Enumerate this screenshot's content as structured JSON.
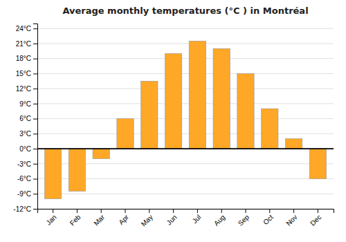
{
  "chart_data": {
    "type": "bar",
    "title": "Average monthly temperatures (°C ) in Montréal",
    "categories": [
      "Jan",
      "Feb",
      "Mar",
      "Apr",
      "May",
      "Jun",
      "Jul",
      "Aug",
      "Sep",
      "Oct",
      "Nov",
      "Dec"
    ],
    "values": [
      -10,
      -8.5,
      -2,
      6,
      13.5,
      19,
      21.5,
      20,
      15,
      8,
      2,
      -6
    ],
    "color": "#FFA726",
    "ylim": [
      -12,
      25
    ],
    "yticks": [
      {
        "value": -12,
        "label": "-12°C"
      },
      {
        "value": -9,
        "label": "-9°C"
      },
      {
        "value": -6,
        "label": "-6°C"
      },
      {
        "value": -3,
        "label": "-3°C"
      },
      {
        "value": 0,
        "label": "0°C"
      },
      {
        "value": 3,
        "label": "3°C"
      },
      {
        "value": 6,
        "label": "6°C"
      },
      {
        "value": 9,
        "label": "9°C"
      },
      {
        "value": 12,
        "label": "12°C"
      },
      {
        "value": 15,
        "label": "15°C"
      },
      {
        "value": 18,
        "label": "18°C"
      },
      {
        "value": 21,
        "label": "21°C"
      },
      {
        "value": 24,
        "label": "24°C"
      }
    ],
    "grid": true
  }
}
